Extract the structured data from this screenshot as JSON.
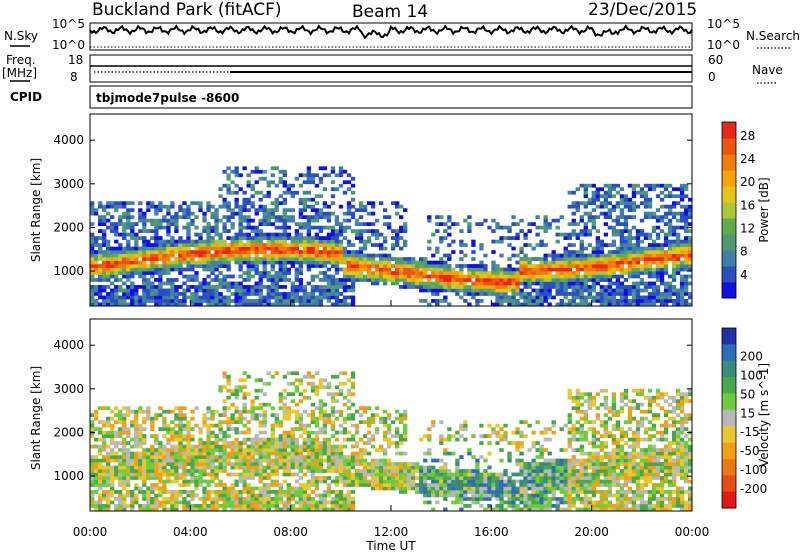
{
  "header": {
    "station": "Buckland Park (fitACF)",
    "beam": "Beam 14",
    "date": "23/Dec/2015"
  },
  "panels": {
    "nsky_label": "N.Sky",
    "nsky_top": "10^5",
    "nsky_bottom": "10^0",
    "nsearch_label": "N.Search",
    "nsearch_top": "10^5",
    "nsearch_bottom": "10^0",
    "freq_label_1": "Freq.",
    "freq_label_2": "[MHz]",
    "freq_top": "18",
    "freq_bottom": "8",
    "nave_label": "Nave",
    "nave_top": "60",
    "nave_bottom": "0",
    "cpid_label": "CPID",
    "cpid_value": "tbjmode7pulse -8600"
  },
  "chart_data": [
    {
      "type": "heatmap",
      "name": "power",
      "ylabel": "Slant Range [km]",
      "xlabel": "",
      "ylim": [
        200,
        4600
      ],
      "yticks": [
        1000,
        2000,
        3000,
        4000
      ],
      "xlim": [
        0,
        24
      ],
      "colorbar": {
        "label": "Power [dB]",
        "ticks": [
          "4",
          "8",
          "12",
          "16",
          "20",
          "24",
          "28"
        ],
        "colors": [
          "#1010e0",
          "#2a4fc0",
          "#3f7fa8",
          "#4f9a72",
          "#63aa4a",
          "#a8c83a",
          "#e8c418",
          "#f4a40a",
          "#f07d0a",
          "#ec5410",
          "#e8261a"
        ]
      }
    },
    {
      "type": "heatmap",
      "name": "velocity",
      "ylabel": "Slant Range [km]",
      "xlabel": "Time UT",
      "ylim": [
        200,
        4600
      ],
      "yticks": [
        1000,
        2000,
        3000,
        4000
      ],
      "xlim": [
        0,
        24
      ],
      "xticks": [
        "00:00",
        "04:00",
        "08:00",
        "12:00",
        "16:00",
        "20:00",
        "00:00"
      ],
      "colorbar": {
        "label": "Velocity [m s^-1]",
        "ticks": [
          "200",
          "100",
          "50",
          "15",
          "-15",
          "-50",
          "-100",
          "-200"
        ],
        "colors": [
          "#2030a8",
          "#2f6cb8",
          "#3b8a7a",
          "#4aa84a",
          "#6fcc3a",
          "#b8b8b8",
          "#e8c830",
          "#f0a018",
          "#ec7814",
          "#e84a14",
          "#e01818"
        ]
      }
    }
  ]
}
